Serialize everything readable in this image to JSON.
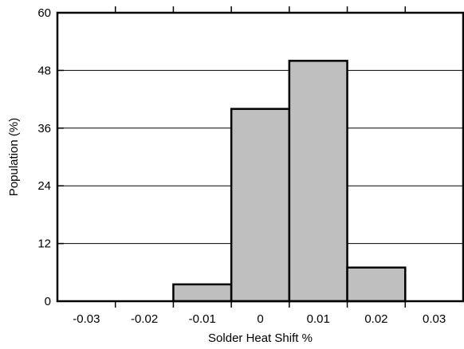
{
  "chart_data": {
    "type": "bar",
    "subtype": "histogram",
    "xlabel": "Solder Heat Shift %",
    "ylabel": "Population (%)",
    "x_ticks": [
      "-0.03",
      "-0.02",
      "-0.01",
      "0",
      "0.01",
      "0.02",
      "0.03"
    ],
    "x_tick_values": [
      -0.03,
      -0.02,
      -0.01,
      0,
      0.01,
      0.02,
      0.03
    ],
    "y_ticks": [
      "0",
      "12",
      "24",
      "36",
      "48",
      "60"
    ],
    "y_tick_values": [
      0,
      12,
      24,
      36,
      48,
      60
    ],
    "xlim": [
      -0.035,
      0.035
    ],
    "ylim": [
      0,
      60
    ],
    "bin_width": 0.01,
    "categories": [
      "-0.03",
      "-0.02",
      "-0.01",
      "0",
      "0.01",
      "0.02",
      "0.03"
    ],
    "values": [
      0,
      0,
      3.5,
      40,
      50,
      7,
      0
    ],
    "bar_color": "#bfbfbf",
    "edge_color": "#000000",
    "grid": "horizontal",
    "legend": "none"
  }
}
